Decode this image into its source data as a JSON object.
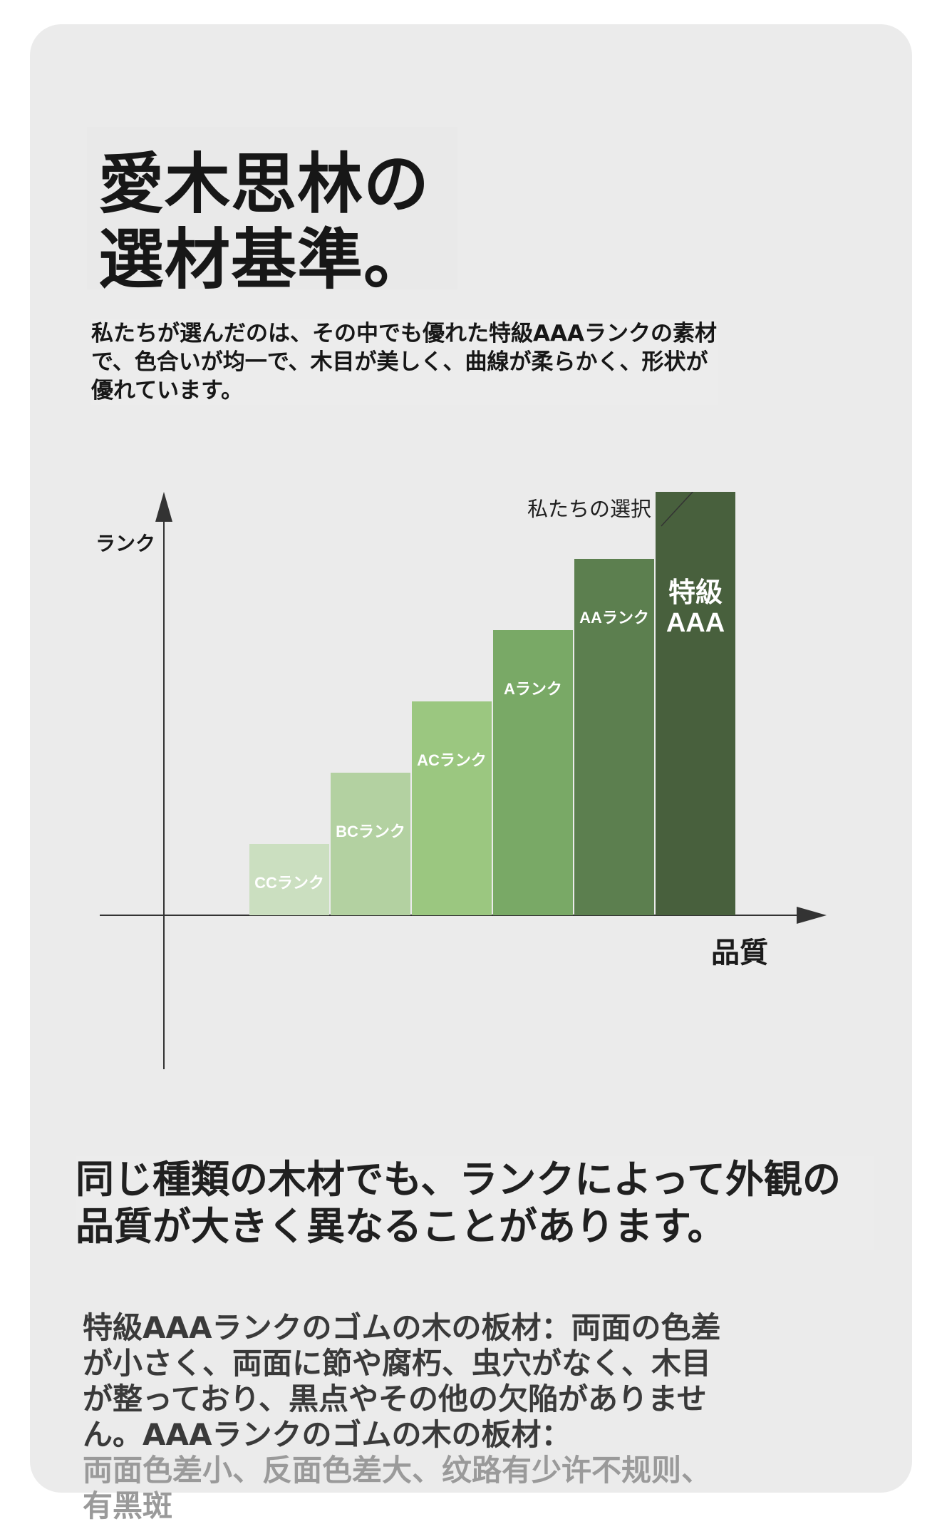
{
  "title": {
    "line1": "愛木思林の",
    "line2": "選材基準。"
  },
  "intro": "私たちが選んだのは、その中でも優れた特級AAAランクの素材で、色合いが均一で、木目が美しく、曲線が柔らかく、形状が優れています。",
  "chart_data": {
    "type": "bar",
    "ylabel": "ランク",
    "xlabel": "品質",
    "categories": [
      "CCランク",
      "BCランク",
      "ACランク",
      "Aランク",
      "AAランク",
      "特級AAA"
    ],
    "values": [
      1,
      2,
      3,
      4,
      5,
      6
    ],
    "ylim": [
      0,
      7
    ],
    "grid": false,
    "colors": [
      "#cbdfc0",
      "#b3d1a1",
      "#9bc780",
      "#79a966",
      "#5c7f4f",
      "#48603d"
    ],
    "annotation": "私たちの選択",
    "highlight": "特級AAA"
  },
  "subhead": "同じ種類の木材でも、ランクによって外観の品質が大きく異なることがあります。",
  "detail": {
    "text": "特級AAAランクのゴムの木の板材：両面の色差が小さく、両面に節や腐朽、虫穴がなく、木目が整っており、黒点やその他の欠陥がありません。AAAランクのゴムの木の板材：",
    "faded": "両面色差小、反面色差大、纹路有少许不规则、有黑斑"
  }
}
